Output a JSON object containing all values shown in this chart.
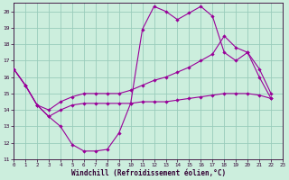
{
  "xlabel": "Windchill (Refroidissement éolien,°C)",
  "bg_color": "#cceedd",
  "line_color": "#990099",
  "grid_color": "#99ccbb",
  "xlim": [
    0,
    23
  ],
  "ylim": [
    11,
    20.5
  ],
  "yticks": [
    11,
    12,
    13,
    14,
    15,
    16,
    17,
    18,
    19,
    20
  ],
  "xticks": [
    0,
    1,
    2,
    3,
    4,
    5,
    6,
    7,
    8,
    9,
    10,
    11,
    12,
    13,
    14,
    15,
    16,
    17,
    18,
    19,
    20,
    21,
    22,
    23
  ],
  "line1_x": [
    0,
    1,
    2,
    3,
    4,
    5,
    6,
    7,
    8,
    9,
    10,
    11,
    12,
    13,
    14,
    15,
    16,
    17,
    18,
    19,
    20,
    21,
    22
  ],
  "line1_y": [
    16.5,
    15.5,
    14.3,
    13.6,
    13.0,
    11.9,
    11.5,
    11.5,
    11.6,
    12.6,
    14.4,
    18.9,
    20.3,
    20.0,
    19.5,
    19.9,
    20.3,
    19.7,
    17.5,
    17.0,
    17.5,
    16.0,
    14.7
  ],
  "line2_x": [
    0,
    1,
    2,
    3,
    4,
    5,
    6,
    7,
    8,
    9,
    10,
    11,
    12,
    13,
    14,
    15,
    16,
    17,
    18,
    19,
    20,
    21,
    22
  ],
  "line2_y": [
    16.5,
    15.5,
    14.3,
    14.0,
    14.5,
    14.8,
    15.0,
    15.0,
    15.0,
    15.0,
    15.2,
    15.5,
    15.8,
    16.0,
    16.3,
    16.6,
    17.0,
    17.4,
    18.5,
    17.8,
    17.5,
    16.5,
    15.0
  ],
  "line3_x": [
    0,
    1,
    2,
    3,
    4,
    5,
    6,
    7,
    8,
    9,
    10,
    11,
    12,
    13,
    14,
    15,
    16,
    17,
    18,
    19,
    20,
    21,
    22
  ],
  "line3_y": [
    16.5,
    15.5,
    14.3,
    13.6,
    14.0,
    14.3,
    14.4,
    14.4,
    14.4,
    14.4,
    14.4,
    14.5,
    14.5,
    14.5,
    14.6,
    14.7,
    14.8,
    14.9,
    15.0,
    15.0,
    15.0,
    14.9,
    14.7
  ]
}
